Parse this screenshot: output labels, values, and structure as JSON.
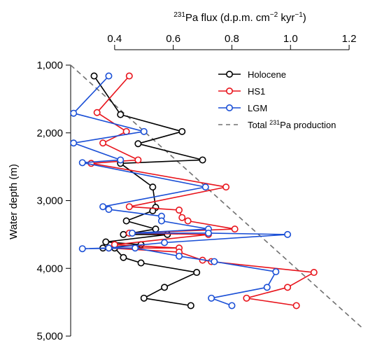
{
  "chart_data": {
    "type": "line",
    "title": "",
    "xlabel_parts": [
      "231",
      "Pa flux (d.p.m. cm",
      "−2",
      " kyr",
      "−1",
      ")"
    ],
    "ylabel": "Water depth (m)",
    "xlim": [
      0.25,
      1.25
    ],
    "ylim": [
      1000,
      5000
    ],
    "y_inverted": true,
    "x_axis_position": "top",
    "xticks": [
      0.4,
      0.6,
      0.8,
      1.0,
      1.2
    ],
    "xtick_labels": [
      "0.4",
      "0.6",
      "0.8",
      "1.0",
      "1.2"
    ],
    "yticks": [
      1000,
      2000,
      3000,
      4000,
      5000
    ],
    "ytick_labels": [
      "1,000",
      "2,000",
      "3,000",
      "4,000",
      "5,000"
    ],
    "grid": false,
    "legend_position": "top-right",
    "series": [
      {
        "name": "Holocene",
        "color": "#000000",
        "marker": "open-circle",
        "points": [
          [
            0.33,
            1160
          ],
          [
            0.42,
            1730
          ],
          [
            0.63,
            1980
          ],
          [
            0.48,
            2160
          ],
          [
            0.7,
            2400
          ],
          [
            0.42,
            2450
          ],
          [
            0.53,
            2800
          ],
          [
            0.54,
            3100
          ],
          [
            0.53,
            3150
          ],
          [
            0.44,
            3300
          ],
          [
            0.54,
            3420
          ],
          [
            0.43,
            3500
          ],
          [
            0.58,
            3500
          ],
          [
            0.37,
            3610
          ],
          [
            0.49,
            3650
          ],
          [
            0.36,
            3700
          ],
          [
            0.4,
            3700
          ],
          [
            0.43,
            3840
          ],
          [
            0.49,
            3920
          ],
          [
            0.68,
            4060
          ],
          [
            0.57,
            4280
          ],
          [
            0.5,
            4440
          ],
          [
            0.66,
            4550
          ]
        ]
      },
      {
        "name": "HS1",
        "color": "#e8141c",
        "marker": "open-circle",
        "points": [
          [
            0.45,
            1160
          ],
          [
            0.34,
            1700
          ],
          [
            0.44,
            1980
          ],
          [
            0.36,
            2150
          ],
          [
            0.48,
            2400
          ],
          [
            0.32,
            2450
          ],
          [
            0.78,
            2800
          ],
          [
            0.45,
            3090
          ],
          [
            0.62,
            3140
          ],
          [
            0.63,
            3250
          ],
          [
            0.65,
            3300
          ],
          [
            0.81,
            3420
          ],
          [
            0.45,
            3480
          ],
          [
            0.72,
            3500
          ],
          [
            0.4,
            3650
          ],
          [
            0.62,
            3700
          ],
          [
            0.38,
            3700
          ],
          [
            0.62,
            3760
          ],
          [
            0.7,
            3880
          ],
          [
            0.73,
            3900
          ],
          [
            1.08,
            4060
          ],
          [
            0.99,
            4280
          ],
          [
            0.85,
            4440
          ],
          [
            1.02,
            4550
          ]
        ]
      },
      {
        "name": "LGM",
        "color": "#1a4fd6",
        "marker": "open-circle",
        "points": [
          [
            0.38,
            1160
          ],
          [
            0.26,
            1710
          ],
          [
            0.5,
            1980
          ],
          [
            0.26,
            2150
          ],
          [
            0.42,
            2400
          ],
          [
            0.29,
            2440
          ],
          [
            0.71,
            2800
          ],
          [
            0.36,
            3090
          ],
          [
            0.38,
            3130
          ],
          [
            0.56,
            3230
          ],
          [
            0.56,
            3300
          ],
          [
            0.72,
            3420
          ],
          [
            0.46,
            3480
          ],
          [
            0.72,
            3480
          ],
          [
            0.99,
            3500
          ],
          [
            0.57,
            3620
          ],
          [
            0.38,
            3700
          ],
          [
            0.29,
            3710
          ],
          [
            0.47,
            3700
          ],
          [
            0.62,
            3820
          ],
          [
            0.74,
            3900
          ],
          [
            0.95,
            4050
          ],
          [
            0.92,
            4280
          ],
          [
            0.73,
            4440
          ],
          [
            0.8,
            4550
          ]
        ]
      }
    ],
    "reference_line": {
      "name_parts": [
        "Total ",
        "231",
        "Pa production"
      ],
      "color": "#707070",
      "style": "dashed",
      "from": [
        0.25,
        1000
      ],
      "to": [
        1.25,
        4900
      ]
    }
  }
}
